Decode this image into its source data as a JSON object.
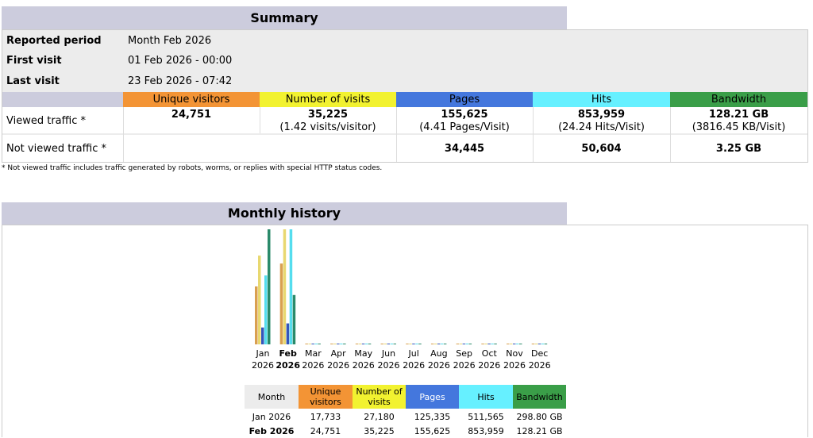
{
  "summary": {
    "title": "Summary",
    "reported_period_label": "Reported period",
    "reported_period_value": "Month Feb 2026",
    "first_visit_label": "First visit",
    "first_visit_value": "01 Feb 2026 - 00:00",
    "last_visit_label": "Last visit",
    "last_visit_value": "23 Feb 2026 - 07:42",
    "columns": [
      "Unique visitors",
      "Number of visits",
      "Pages",
      "Hits",
      "Bandwidth"
    ],
    "viewed_label": "Viewed traffic *",
    "viewed": {
      "unique_visitors": "24,751",
      "visits": "35,225",
      "visits_sub": "(1.42 visits/visitor)",
      "pages": "155,625",
      "pages_sub": "(4.41 Pages/Visit)",
      "hits": "853,959",
      "hits_sub": "(24.24 Hits/Visit)",
      "bandwidth": "128.21 GB",
      "bandwidth_sub": "(3816.45 KB/Visit)"
    },
    "not_viewed_label": "Not viewed traffic *",
    "not_viewed": {
      "pages": "34,445",
      "hits": "50,604",
      "bandwidth": "3.25 GB"
    },
    "footnote": "* Not viewed traffic includes traffic generated by robots, worms, or replies with special HTTP status codes."
  },
  "colors": {
    "unique_visitors": "#f39435",
    "visits": "#f2f230",
    "pages": "#4477dd",
    "hits": "#66f0ff",
    "bandwidth": "#2ea495",
    "header_bg": "#ccccdd"
  },
  "history": {
    "title": "Monthly history",
    "table_headers": [
      "Month",
      "Unique visitors",
      "Number of visits",
      "Pages",
      "Hits",
      "Bandwidth"
    ],
    "rows": [
      {
        "month": "Jan 2026",
        "unique": "17,733",
        "visits": "27,180",
        "pages": "125,335",
        "hits": "511,565",
        "bandwidth": "298.80 GB",
        "current": false
      },
      {
        "month": "Feb 2026",
        "unique": "24,751",
        "visits": "35,225",
        "pages": "155,625",
        "hits": "853,959",
        "bandwidth": "128.21 GB",
        "current": true
      }
    ]
  },
  "chart_data": {
    "type": "bar",
    "categories": [
      {
        "month": "Jan",
        "year": "2026"
      },
      {
        "month": "Feb",
        "year": "2026"
      },
      {
        "month": "Mar",
        "year": "2026"
      },
      {
        "month": "Apr",
        "year": "2026"
      },
      {
        "month": "May",
        "year": "2026"
      },
      {
        "month": "Jun",
        "year": "2026"
      },
      {
        "month": "Jul",
        "year": "2026"
      },
      {
        "month": "Aug",
        "year": "2026"
      },
      {
        "month": "Sep",
        "year": "2026"
      },
      {
        "month": "Oct",
        "year": "2026"
      },
      {
        "month": "Nov",
        "year": "2026"
      },
      {
        "month": "Dec",
        "year": "2026"
      }
    ],
    "current_index": 1,
    "series": [
      {
        "key": "unique_visitors",
        "values": [
          17733,
          24751,
          0,
          0,
          0,
          0,
          0,
          0,
          0,
          0,
          0,
          0
        ]
      },
      {
        "key": "visits",
        "values": [
          27180,
          35225,
          0,
          0,
          0,
          0,
          0,
          0,
          0,
          0,
          0,
          0
        ]
      },
      {
        "key": "pages",
        "values": [
          125335,
          155625,
          0,
          0,
          0,
          0,
          0,
          0,
          0,
          0,
          0,
          0
        ]
      },
      {
        "key": "hits",
        "values": [
          511565,
          853959,
          0,
          0,
          0,
          0,
          0,
          0,
          0,
          0,
          0,
          0
        ]
      },
      {
        "key": "bandwidth",
        "values": [
          298.8,
          128.21,
          0,
          0,
          0,
          0,
          0,
          0,
          0,
          0,
          0,
          0
        ]
      }
    ],
    "series_groups": [
      [
        "unique_visitors",
        "visits"
      ],
      [
        "pages",
        "hits"
      ],
      [
        "bandwidth"
      ]
    ]
  }
}
